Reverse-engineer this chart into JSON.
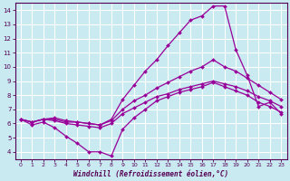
{
  "background_color": "#c8eaf0",
  "grid_color": "#ffffff",
  "line_color": "#990099",
  "xlabel": "Windchill (Refroidissement éolien,°C)",
  "xlim": [
    -0.5,
    23.5
  ],
  "ylim": [
    3.5,
    14.5
  ],
  "xticks": [
    0,
    1,
    2,
    3,
    4,
    5,
    6,
    7,
    8,
    9,
    10,
    11,
    12,
    13,
    14,
    15,
    16,
    17,
    18,
    19,
    20,
    21,
    22,
    23
  ],
  "yticks": [
    4,
    5,
    6,
    7,
    8,
    9,
    10,
    11,
    12,
    13,
    14
  ],
  "series": [
    [
      6.3,
      5.9,
      6.1,
      5.7,
      5.1,
      4.6,
      4.0,
      4.0,
      3.7,
      5.6,
      6.4,
      7.0,
      7.6,
      7.9,
      8.2,
      8.4,
      8.6,
      8.9,
      8.6,
      8.3,
      8.0,
      7.5,
      7.2,
      6.8
    ],
    [
      6.3,
      6.1,
      6.3,
      6.2,
      6.0,
      5.9,
      5.8,
      5.7,
      6.0,
      6.7,
      7.1,
      7.5,
      7.9,
      8.1,
      8.4,
      8.6,
      8.8,
      9.0,
      8.8,
      8.6,
      8.3,
      7.9,
      7.6,
      7.2
    ],
    [
      6.3,
      6.1,
      6.3,
      6.3,
      6.1,
      6.1,
      6.0,
      5.9,
      6.2,
      7.0,
      7.6,
      8.0,
      8.5,
      8.9,
      9.3,
      9.7,
      10.0,
      10.5,
      10.0,
      9.7,
      9.2,
      8.7,
      8.2,
      7.7
    ],
    [
      6.3,
      6.1,
      6.3,
      6.4,
      6.2,
      6.1,
      6.0,
      5.9,
      6.3,
      7.7,
      8.7,
      9.7,
      10.5,
      11.5,
      12.4,
      13.3,
      13.6,
      14.3,
      14.3,
      11.2,
      9.4,
      7.2,
      7.5,
      6.7
    ]
  ]
}
